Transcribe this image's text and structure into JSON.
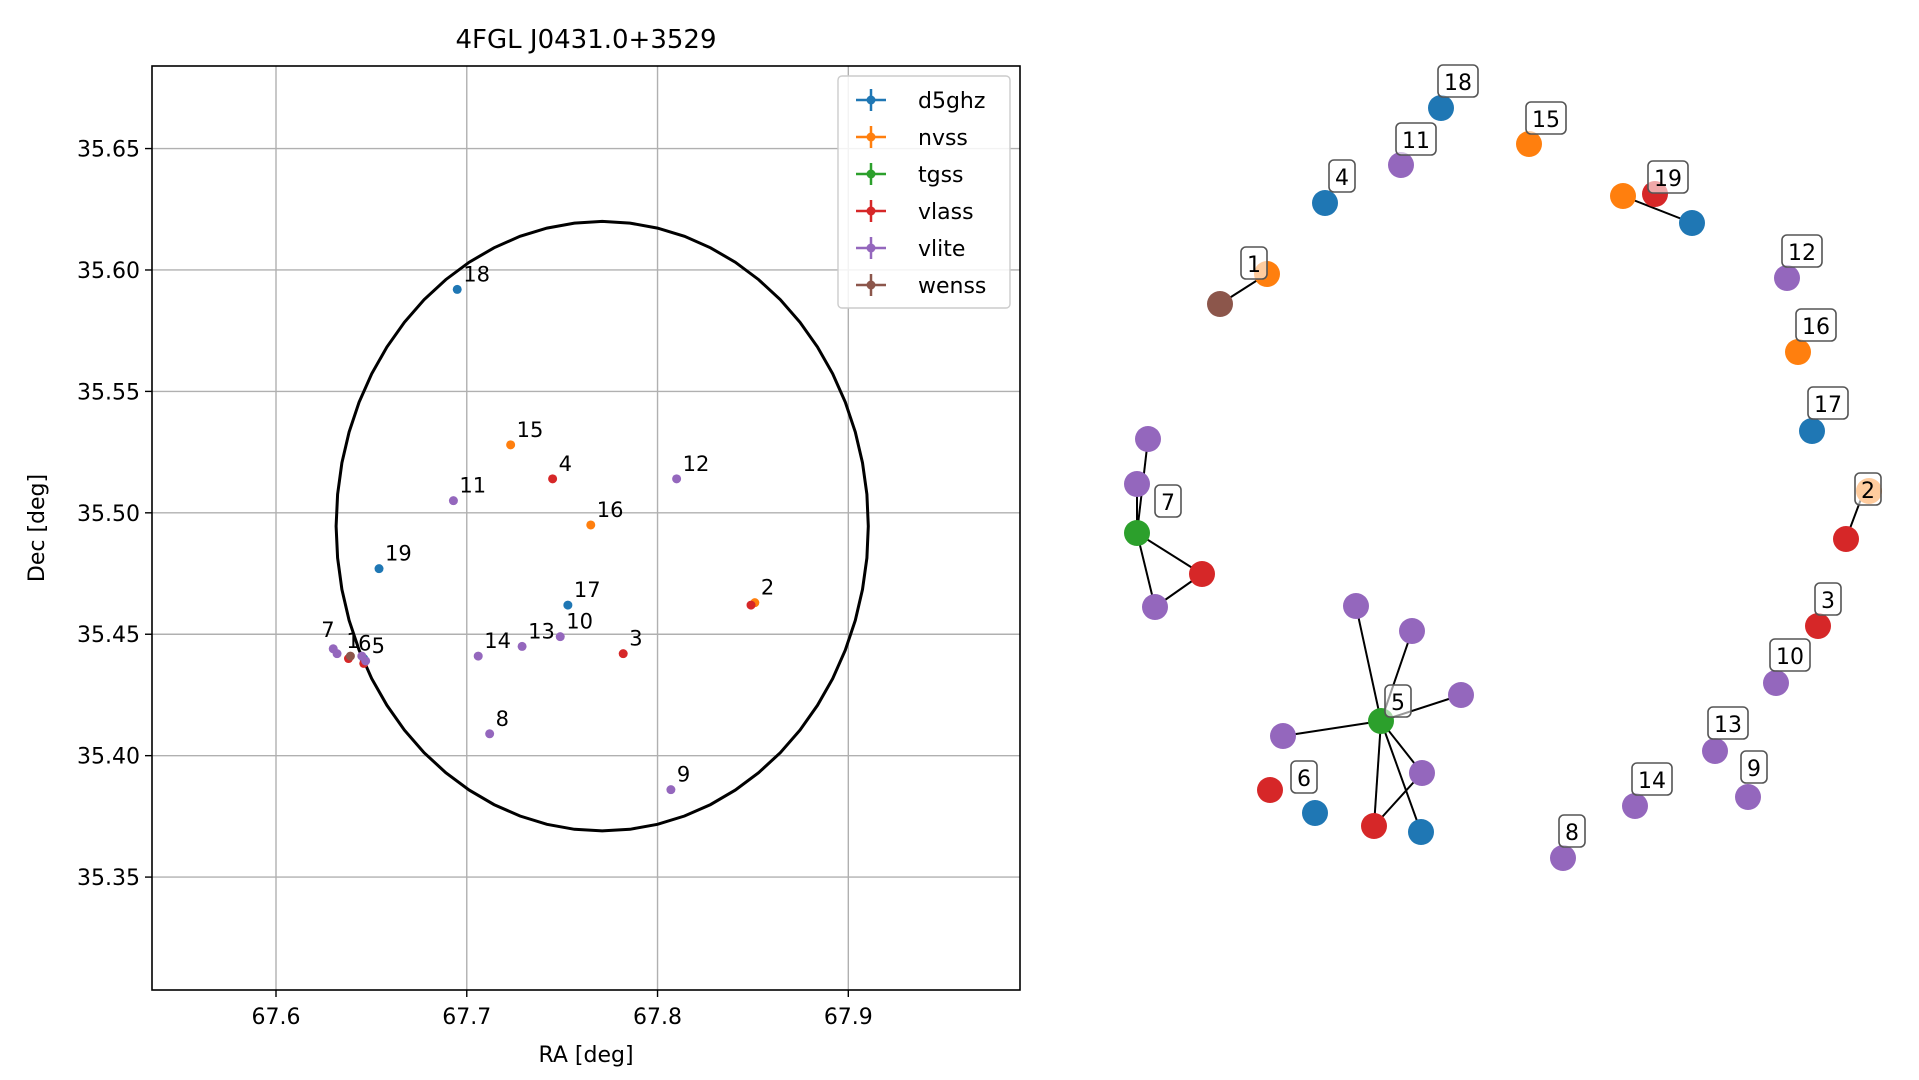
{
  "chart_data": [
    {
      "type": "scatter",
      "title": "4FGL J0431.0+3529",
      "xlabel": "RA [deg]",
      "ylabel": "Dec [deg]",
      "xlim": [
        67.535,
        67.99
      ],
      "ylim": [
        35.3035,
        35.684
      ],
      "xticks": [
        67.6,
        67.7,
        67.8,
        67.9
      ],
      "yticks": [
        35.35,
        35.4,
        35.45,
        35.5,
        35.55,
        35.6,
        35.65
      ],
      "xtick_labels": [
        "67.6",
        "67.7",
        "67.8",
        "67.9"
      ],
      "ytick_labels": [
        "35.35",
        "35.40",
        "35.45",
        "35.50",
        "35.55",
        "35.60",
        "35.65"
      ],
      "grid": true,
      "legend_position": "top-right",
      "series_colors": {
        "d5ghz": "#1f77b4",
        "nvss": "#ff7f0e",
        "tgss": "#2ca02c",
        "vlass": "#d62728",
        "vlite": "#9467bd",
        "wenss": "#8c564b"
      },
      "legend": [
        "d5ghz",
        "nvss",
        "tgss",
        "vlass",
        "vlite",
        "wenss"
      ],
      "ellipse": {
        "center": [
          67.771,
          35.4945
        ],
        "semi_axes": [
          0.1395,
          0.1255
        ]
      },
      "points": [
        {
          "series": "d5ghz",
          "ra": 67.695,
          "dec": 35.592
        },
        {
          "series": "d5ghz",
          "ra": 67.654,
          "dec": 35.477
        },
        {
          "series": "d5ghz",
          "ra": 67.753,
          "dec": 35.462
        },
        {
          "series": "d5ghz",
          "ra": 67.646,
          "dec": 35.44
        },
        {
          "series": "nvss",
          "ra": 67.723,
          "dec": 35.528
        },
        {
          "series": "nvss",
          "ra": 67.765,
          "dec": 35.495
        },
        {
          "series": "nvss",
          "ra": 67.851,
          "dec": 35.463
        },
        {
          "series": "vlass",
          "ra": 67.745,
          "dec": 35.514
        },
        {
          "series": "vlass",
          "ra": 67.849,
          "dec": 35.462
        },
        {
          "series": "vlass",
          "ra": 67.782,
          "dec": 35.442
        },
        {
          "series": "vlass",
          "ra": 67.638,
          "dec": 35.44
        },
        {
          "series": "vlass",
          "ra": 67.646,
          "dec": 35.438
        },
        {
          "series": "vlite",
          "ra": 67.693,
          "dec": 35.505
        },
        {
          "series": "vlite",
          "ra": 67.81,
          "dec": 35.514
        },
        {
          "series": "vlite",
          "ra": 67.749,
          "dec": 35.449
        },
        {
          "series": "vlite",
          "ra": 67.729,
          "dec": 35.445
        },
        {
          "series": "vlite",
          "ra": 67.706,
          "dec": 35.441
        },
        {
          "series": "vlite",
          "ra": 67.712,
          "dec": 35.409
        },
        {
          "series": "vlite",
          "ra": 67.807,
          "dec": 35.386
        },
        {
          "series": "vlite",
          "ra": 67.63,
          "dec": 35.444
        },
        {
          "series": "vlite",
          "ra": 67.632,
          "dec": 35.442
        },
        {
          "series": "vlite",
          "ra": 67.647,
          "dec": 35.439
        },
        {
          "series": "vlite",
          "ra": 67.645,
          "dec": 35.441
        },
        {
          "series": "wenss",
          "ra": 67.639,
          "dec": 35.441
        }
      ],
      "point_labels": [
        {
          "text": "18",
          "ra": 67.695,
          "dec": 35.592
        },
        {
          "text": "15",
          "ra": 67.723,
          "dec": 35.528
        },
        {
          "text": "4",
          "ra": 67.745,
          "dec": 35.514
        },
        {
          "text": "12",
          "ra": 67.81,
          "dec": 35.514
        },
        {
          "text": "11",
          "ra": 67.693,
          "dec": 35.505
        },
        {
          "text": "16",
          "ra": 67.765,
          "dec": 35.495
        },
        {
          "text": "19",
          "ra": 67.654,
          "dec": 35.477
        },
        {
          "text": "17",
          "ra": 67.753,
          "dec": 35.462
        },
        {
          "text": "2",
          "ra": 67.851,
          "dec": 35.463
        },
        {
          "text": "3",
          "ra": 67.782,
          "dec": 35.442
        },
        {
          "text": "10",
          "ra": 67.749,
          "dec": 35.449
        },
        {
          "text": "13",
          "ra": 67.729,
          "dec": 35.445
        },
        {
          "text": "14",
          "ra": 67.706,
          "dec": 35.441
        },
        {
          "text": "8",
          "ra": 67.712,
          "dec": 35.409
        },
        {
          "text": "9",
          "ra": 67.807,
          "dec": 35.386
        },
        {
          "text": "7",
          "ra": 67.63,
          "dec": 35.444
        },
        {
          "text": "1",
          "ra": 67.639,
          "dec": 35.441
        },
        {
          "text": "6",
          "ra": 67.642,
          "dec": 35.44
        },
        {
          "text": "5",
          "ra": 67.647,
          "dec": 35.439
        }
      ]
    },
    {
      "type": "network",
      "labeled_nodes": [
        "18",
        "15",
        "11",
        "4",
        "19",
        "1",
        "12",
        "16",
        "17",
        "7",
        "2",
        "3",
        "10",
        "5",
        "13",
        "6",
        "14",
        "9",
        "8"
      ],
      "node_colors": {
        "d5ghz": "#1f77b4",
        "nvss": "#ff7f0e",
        "tgss": "#2ca02c",
        "vlass": "#d62728",
        "vlite": "#9467bd",
        "wenss": "#8c564b"
      }
    }
  ]
}
